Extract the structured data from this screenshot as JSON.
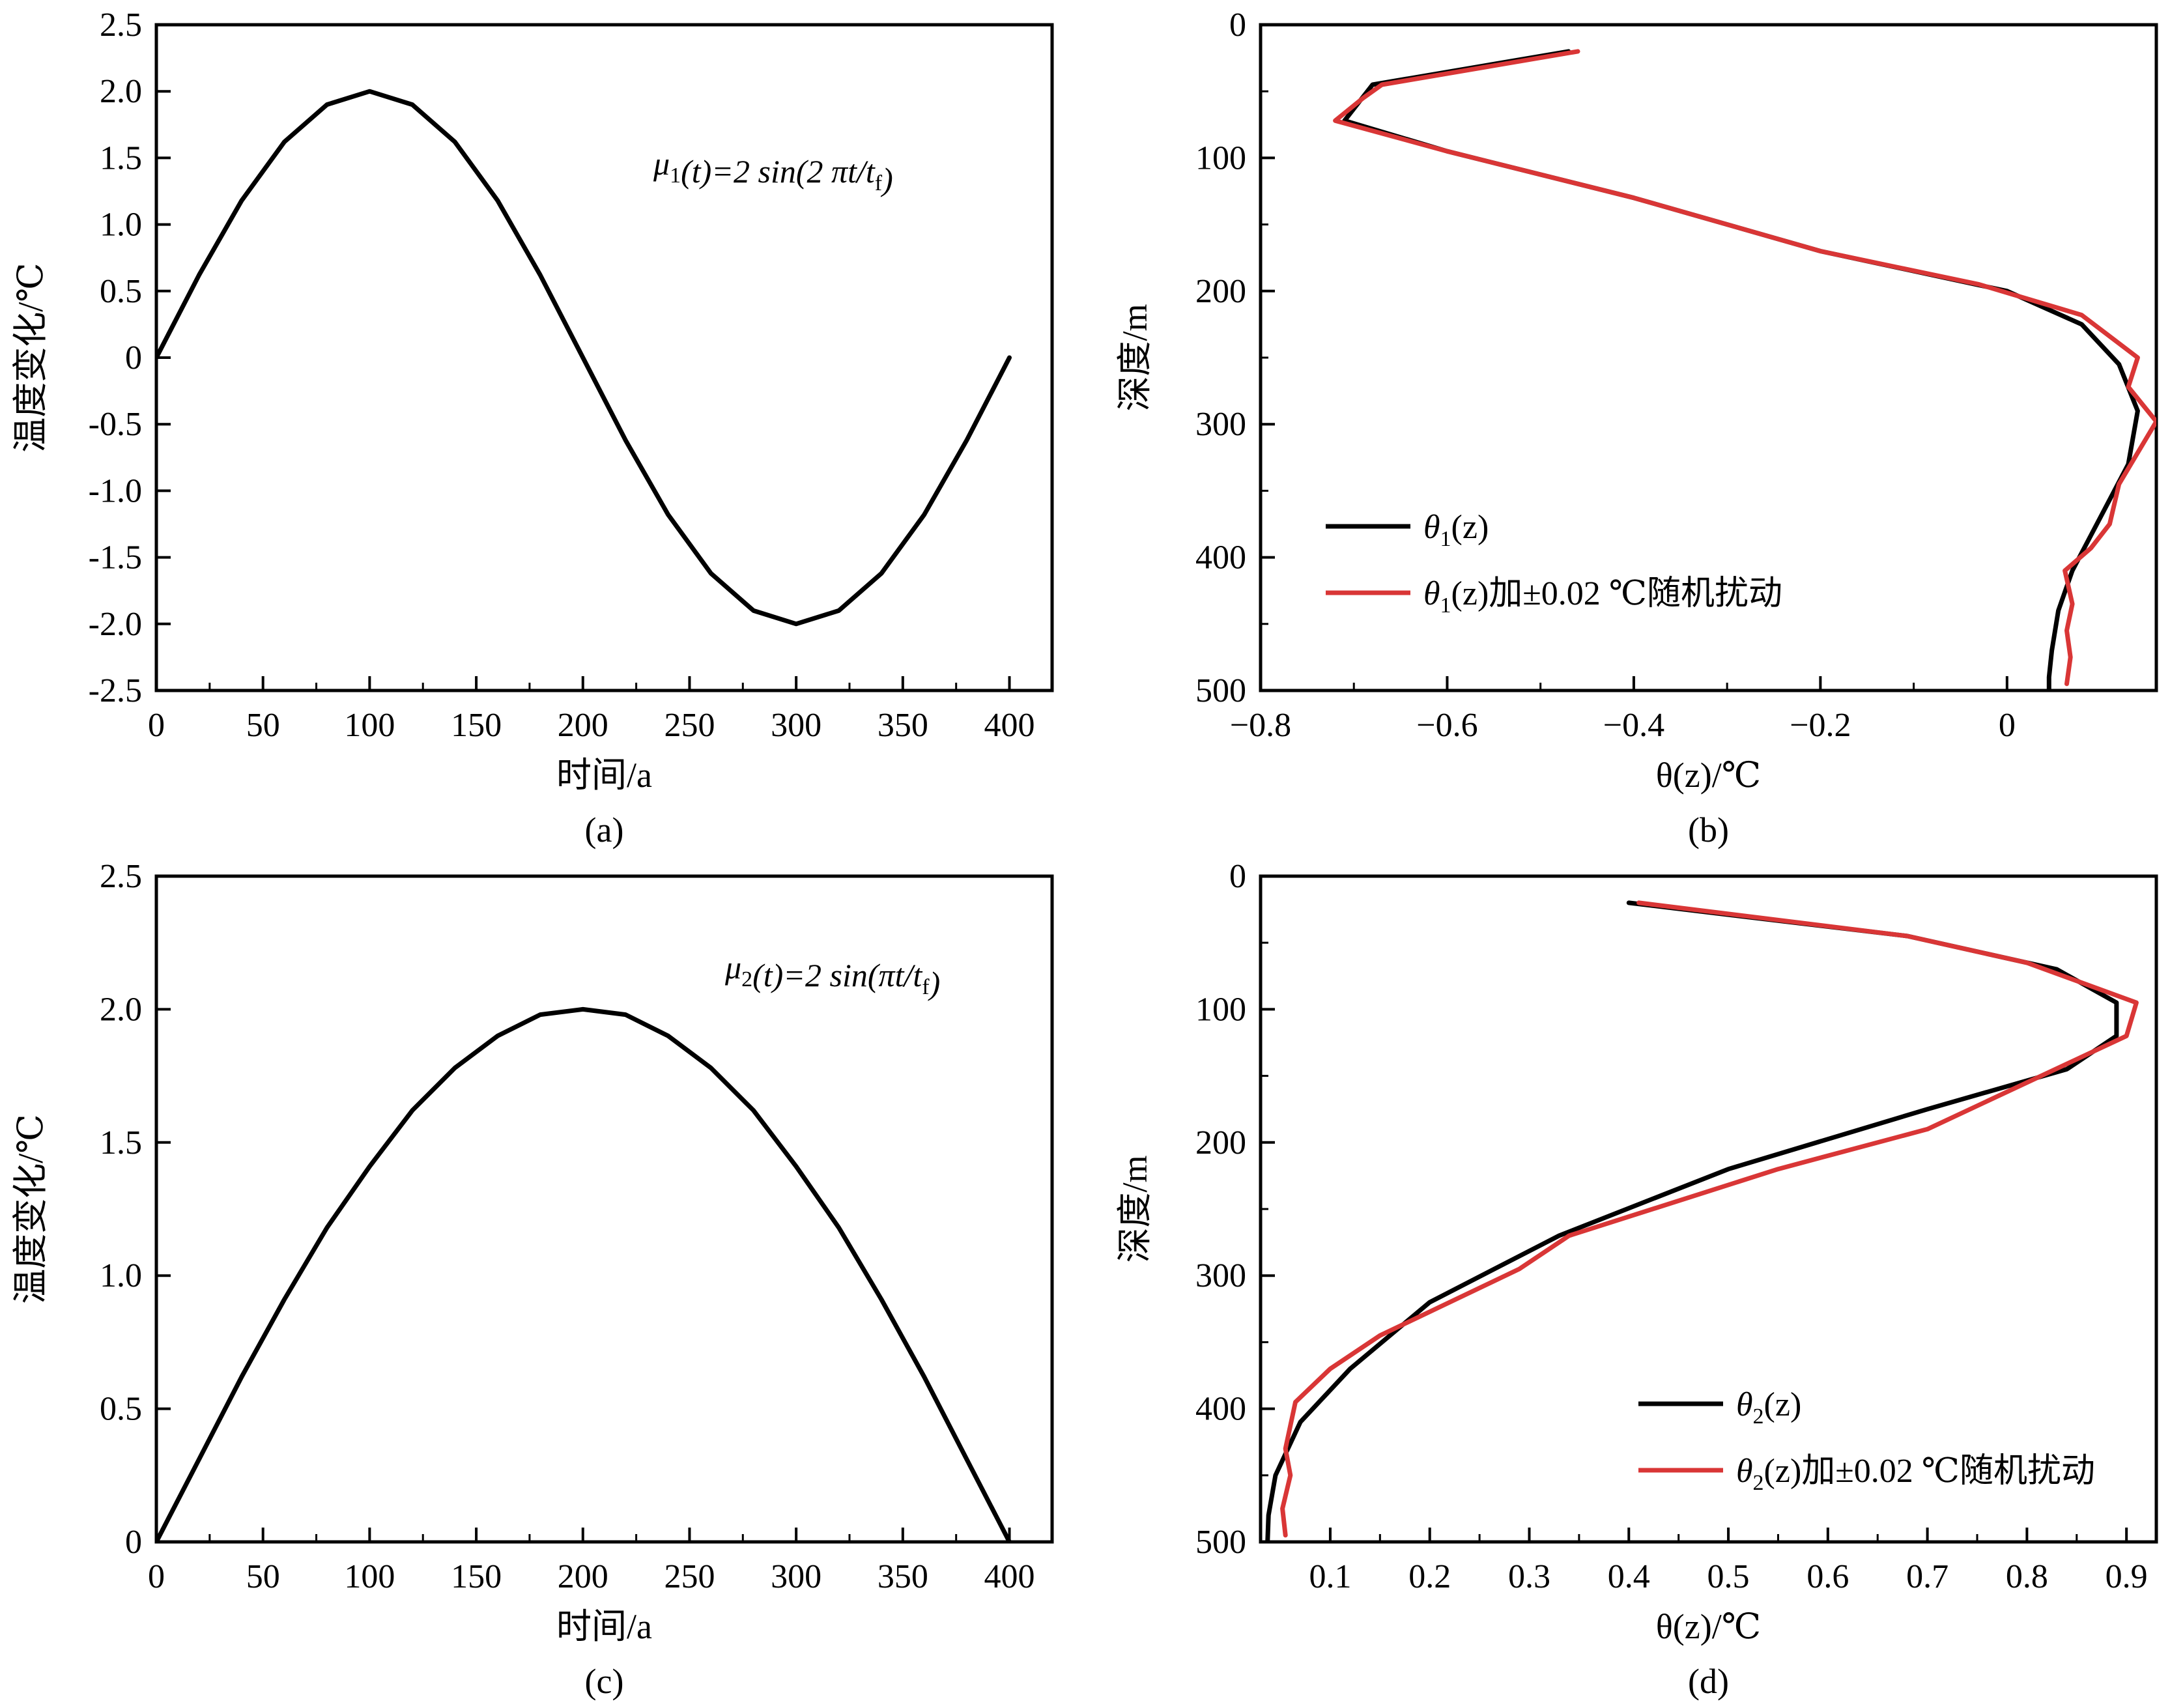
{
  "chart_data": [
    {
      "id": "a",
      "type": "line",
      "caption": "(a)",
      "xlabel": "时间/a",
      "ylabel": "温度变化/℃",
      "xlim": [
        0,
        420
      ],
      "ylim": [
        -2.5,
        2.5
      ],
      "xticks": [
        0,
        50,
        100,
        150,
        200,
        250,
        300,
        350,
        400
      ],
      "xtick_labels": [
        "0",
        "50",
        "100",
        "150",
        "200",
        "250",
        "300",
        "350",
        "400"
      ],
      "yticks": [
        -2.5,
        -2.0,
        -1.5,
        -1.0,
        -0.5,
        0,
        0.5,
        1.0,
        1.5,
        2.0,
        2.5
      ],
      "ytick_labels": [
        "-2.5",
        "-2.0",
        "-1.5",
        "-1.0",
        "-0.5",
        "0",
        "0.5",
        "1.0",
        "1.5",
        "2.0",
        "2.5"
      ],
      "grid": false,
      "annotation": {
        "prefix": "μ",
        "sub": "1",
        "mid": "(t)=2 sin(2 πt/t",
        "sub2": "f",
        "suffix": ")"
      },
      "series": [
        {
          "color": "#000000",
          "x": [
            0,
            20,
            40,
            60,
            80,
            100,
            120,
            140,
            160,
            180,
            200,
            220,
            240,
            260,
            280,
            300,
            320,
            340,
            360,
            380,
            400
          ],
          "y": [
            0,
            0.62,
            1.18,
            1.62,
            1.9,
            2.0,
            1.9,
            1.62,
            1.18,
            0.62,
            0,
            -0.62,
            -1.18,
            -1.62,
            -1.9,
            -2.0,
            -1.9,
            -1.62,
            -1.18,
            -0.62,
            0
          ]
        }
      ]
    },
    {
      "id": "b",
      "type": "line",
      "caption": "(b)",
      "xlabel": "θ(z)/℃",
      "ylabel": "深度/m",
      "xlim": [
        -0.8,
        0.16
      ],
      "ylim": [
        500,
        0
      ],
      "xticks": [
        -0.8,
        -0.6,
        -0.4,
        -0.2,
        0
      ],
      "xtick_labels": [
        "−0.8",
        "−0.6",
        "−0.4",
        "−0.2",
        "0"
      ],
      "yticks": [
        0,
        100,
        200,
        300,
        400,
        500
      ],
      "ytick_labels": [
        "0",
        "100",
        "200",
        "300",
        "400",
        "500"
      ],
      "grid": false,
      "legend_position": "lower-left",
      "series": [
        {
          "name": "θ1(z)",
          "legend_main": "θ",
          "legend_sub": "1",
          "legend_rest": "(z)",
          "color": "#000000",
          "x": [
            -0.47,
            -0.68,
            -0.71,
            -0.6,
            -0.4,
            -0.2,
            0.0,
            0.08,
            0.12,
            0.14,
            0.13,
            0.1,
            0.07,
            0.055,
            0.048,
            0.045,
            0.045
          ],
          "y": [
            20,
            45,
            72,
            95,
            130,
            170,
            200,
            225,
            255,
            290,
            330,
            370,
            410,
            440,
            470,
            490,
            500
          ]
        },
        {
          "name": "θ1(z)加±0.02 ℃随机扰动",
          "legend_main": "θ",
          "legend_sub": "1",
          "legend_rest": "(z)加±0.02 ℃随机扰动",
          "color": "#d93636",
          "x": [
            -0.46,
            -0.67,
            -0.69,
            -0.72,
            -0.6,
            -0.4,
            -0.2,
            -0.03,
            0.08,
            0.14,
            0.13,
            0.16,
            0.12,
            0.11,
            0.09,
            0.062,
            0.07,
            0.064,
            0.068,
            0.064
          ],
          "y": [
            20,
            45,
            55,
            72,
            95,
            130,
            170,
            195,
            218,
            250,
            272,
            298,
            345,
            375,
            393,
            410,
            435,
            455,
            475,
            495
          ]
        }
      ]
    },
    {
      "id": "c",
      "type": "line",
      "caption": "(c)",
      "xlabel": "时间/a",
      "ylabel": "温度变化/℃",
      "xlim": [
        0,
        420
      ],
      "ylim": [
        0,
        2.5
      ],
      "xticks": [
        0,
        50,
        100,
        150,
        200,
        250,
        300,
        350,
        400
      ],
      "xtick_labels": [
        "0",
        "50",
        "100",
        "150",
        "200",
        "250",
        "300",
        "350",
        "400"
      ],
      "yticks": [
        0,
        0.5,
        1.0,
        1.5,
        2.0,
        2.5
      ],
      "ytick_labels": [
        "0",
        "0.5",
        "1.0",
        "1.5",
        "2.0",
        "2.5"
      ],
      "grid": false,
      "annotation": {
        "prefix": "μ",
        "sub": "2",
        "mid": "(t)=2 sin(πt/t",
        "sub2": "f",
        "suffix": ")"
      },
      "series": [
        {
          "color": "#000000",
          "x": [
            0,
            20,
            40,
            60,
            80,
            100,
            120,
            140,
            160,
            180,
            200,
            220,
            240,
            260,
            280,
            300,
            320,
            340,
            360,
            380,
            400
          ],
          "y": [
            0,
            0.31,
            0.62,
            0.91,
            1.18,
            1.41,
            1.62,
            1.78,
            1.9,
            1.98,
            2.0,
            1.98,
            1.9,
            1.78,
            1.62,
            1.41,
            1.18,
            0.91,
            0.62,
            0.31,
            0
          ]
        }
      ]
    },
    {
      "id": "d",
      "type": "line",
      "caption": "(d)",
      "xlabel": "θ(z)/℃",
      "ylabel": "深度/m",
      "xlim": [
        0.03,
        0.93
      ],
      "ylim": [
        500,
        0
      ],
      "xticks": [
        0.1,
        0.2,
        0.3,
        0.4,
        0.5,
        0.6,
        0.7,
        0.8,
        0.9
      ],
      "xtick_labels": [
        "0.1",
        "0.2",
        "0.3",
        "0.4",
        "0.5",
        "0.6",
        "0.7",
        "0.8",
        "0.9"
      ],
      "yticks": [
        0,
        100,
        200,
        300,
        400,
        500
      ],
      "ytick_labels": [
        "0",
        "100",
        "200",
        "300",
        "400",
        "500"
      ],
      "grid": false,
      "legend_position": "lower-right",
      "series": [
        {
          "name": "θ2(z)",
          "legend_main": "θ",
          "legend_sub": "2",
          "legend_rest": "(z)",
          "color": "#000000",
          "x": [
            0.4,
            0.68,
            0.83,
            0.89,
            0.89,
            0.84,
            0.7,
            0.5,
            0.33,
            0.2,
            0.12,
            0.07,
            0.045,
            0.038,
            0.037
          ],
          "y": [
            20,
            45,
            70,
            95,
            120,
            145,
            175,
            220,
            270,
            320,
            370,
            410,
            450,
            480,
            500
          ]
        },
        {
          "name": "θ2(z)加±0.02 ℃随机扰动",
          "legend_main": "θ",
          "legend_sub": "2",
          "legend_rest": "(z)加±0.02 ℃随机扰动",
          "color": "#d93636",
          "x": [
            0.41,
            0.68,
            0.8,
            0.91,
            0.9,
            0.7,
            0.55,
            0.34,
            0.29,
            0.15,
            0.1,
            0.065,
            0.055,
            0.06,
            0.052,
            0.055
          ],
          "y": [
            20,
            45,
            65,
            95,
            120,
            190,
            220,
            270,
            295,
            345,
            370,
            395,
            430,
            450,
            475,
            495
          ]
        }
      ]
    }
  ]
}
